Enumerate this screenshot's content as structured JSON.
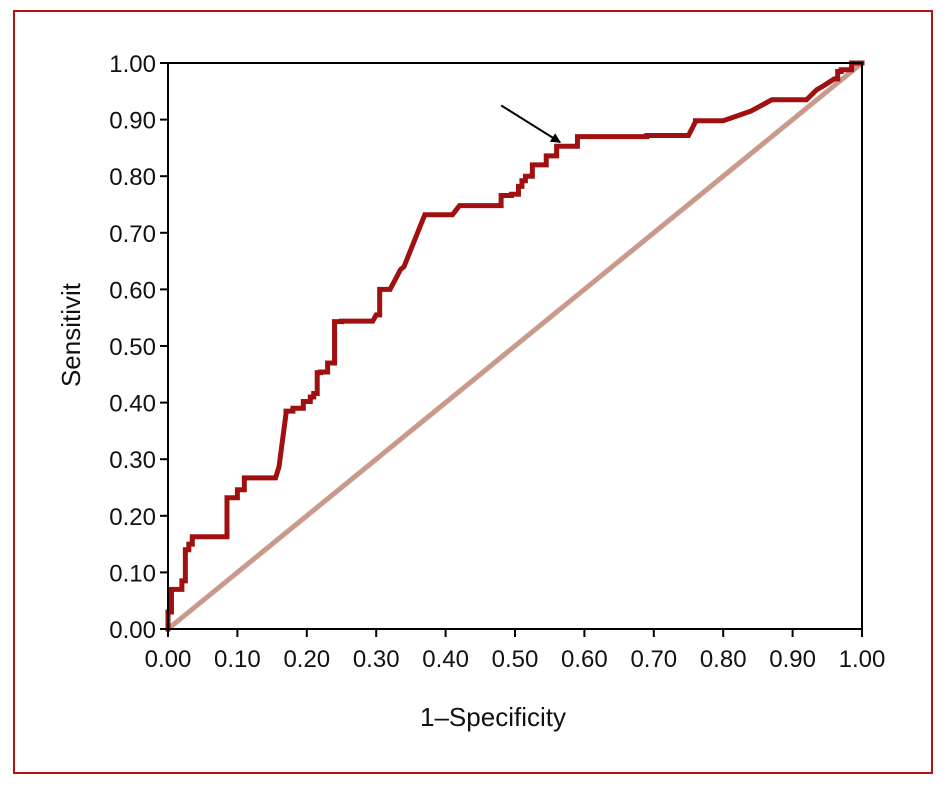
{
  "chart_data": {
    "type": "line",
    "title": "",
    "xlabel": "1–Specificity",
    "ylabel": "Sensitivit",
    "xlim": [
      0,
      1
    ],
    "ylim": [
      0,
      1
    ],
    "x_ticks": [
      "0.00",
      "0.10",
      "0.20",
      "0.30",
      "0.40",
      "0.50",
      "0.60",
      "0.70",
      "0.80",
      "0.90",
      "1.00"
    ],
    "y_ticks": [
      "0.00",
      "0.10",
      "0.20",
      "0.30",
      "0.40",
      "0.50",
      "0.60",
      "0.70",
      "0.80",
      "0.90",
      "1.00"
    ],
    "grid": false,
    "legend": "none",
    "series": [
      {
        "color": "#a01010",
        "x": [
          0.0,
          0.0,
          0.005,
          0.005,
          0.02,
          0.02,
          0.025,
          0.025,
          0.03,
          0.03,
          0.035,
          0.035,
          0.085,
          0.085,
          0.1,
          0.1,
          0.11,
          0.11,
          0.155,
          0.16,
          0.17,
          0.17,
          0.18,
          0.18,
          0.195,
          0.195,
          0.205,
          0.205,
          0.21,
          0.21,
          0.215,
          0.215,
          0.22,
          0.22,
          0.23,
          0.23,
          0.24,
          0.24,
          0.25,
          0.25,
          0.295,
          0.3,
          0.305,
          0.305,
          0.32,
          0.335,
          0.34,
          0.37,
          0.41,
          0.42,
          0.48,
          0.48,
          0.495,
          0.495,
          0.505,
          0.505,
          0.51,
          0.51,
          0.515,
          0.515,
          0.525,
          0.525,
          0.545,
          0.545,
          0.56,
          0.56,
          0.59,
          0.59,
          0.69,
          0.69,
          0.75,
          0.76,
          0.76,
          0.8,
          0.84,
          0.87,
          0.87,
          0.92,
          0.935,
          0.945,
          0.955,
          0.96,
          0.965,
          0.965,
          0.97,
          0.97,
          0.985,
          0.985,
          1.0
        ],
        "y": [
          0.0,
          0.03,
          0.03,
          0.07,
          0.07,
          0.085,
          0.085,
          0.14,
          0.14,
          0.15,
          0.15,
          0.163,
          0.163,
          0.232,
          0.232,
          0.246,
          0.246,
          0.267,
          0.267,
          0.287,
          0.38,
          0.385,
          0.385,
          0.39,
          0.39,
          0.402,
          0.402,
          0.41,
          0.41,
          0.416,
          0.416,
          0.453,
          0.453,
          0.454,
          0.454,
          0.47,
          0.47,
          0.543,
          0.543,
          0.544,
          0.544,
          0.555,
          0.555,
          0.6,
          0.6,
          0.635,
          0.64,
          0.732,
          0.732,
          0.748,
          0.748,
          0.766,
          0.766,
          0.768,
          0.768,
          0.782,
          0.782,
          0.792,
          0.792,
          0.8,
          0.8,
          0.82,
          0.82,
          0.836,
          0.836,
          0.853,
          0.853,
          0.87,
          0.87,
          0.872,
          0.872,
          0.896,
          0.898,
          0.898,
          0.915,
          0.935,
          0.935,
          0.935,
          0.953,
          0.96,
          0.968,
          0.972,
          0.972,
          0.985,
          0.985,
          0.988,
          0.988,
          1.0,
          1.0
        ]
      },
      {
        "color": "#c9998a",
        "x": [
          0,
          1
        ],
        "y": [
          0,
          1
        ]
      }
    ],
    "annotations": [
      {
        "type": "arrow",
        "from": [
          0.48,
          0.925
        ],
        "to": [
          0.565,
          0.86
        ]
      }
    ]
  }
}
